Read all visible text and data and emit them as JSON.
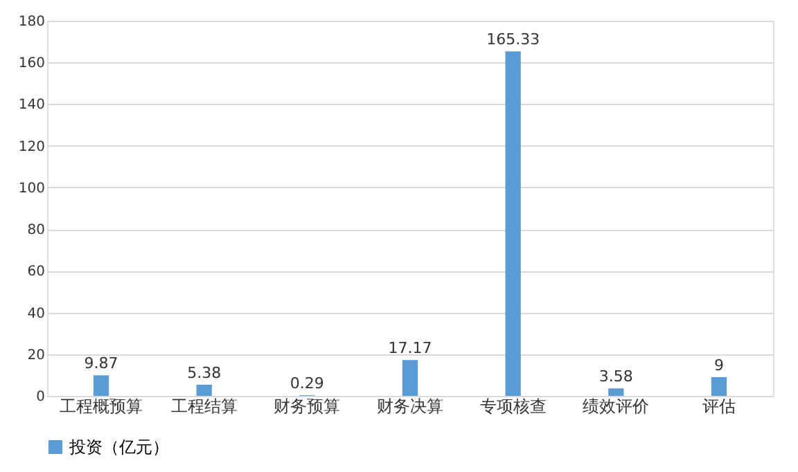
{
  "chart_data": {
    "type": "bar",
    "categories": [
      "工程概预算",
      "工程结算",
      "财务预算",
      "财务决算",
      "专项核查",
      "绩效评价",
      "评估"
    ],
    "series": [
      {
        "name": "投资（亿元）",
        "color": "#5b9bd5",
        "values": [
          9.87,
          5.38,
          0.29,
          17.17,
          165.33,
          3.58,
          9
        ]
      }
    ],
    "ylim": [
      0,
      180
    ],
    "yticks": [
      0,
      20,
      40,
      60,
      80,
      100,
      120,
      140,
      160,
      180
    ],
    "grid": "y",
    "legend": "bottom",
    "data_labels": true
  }
}
